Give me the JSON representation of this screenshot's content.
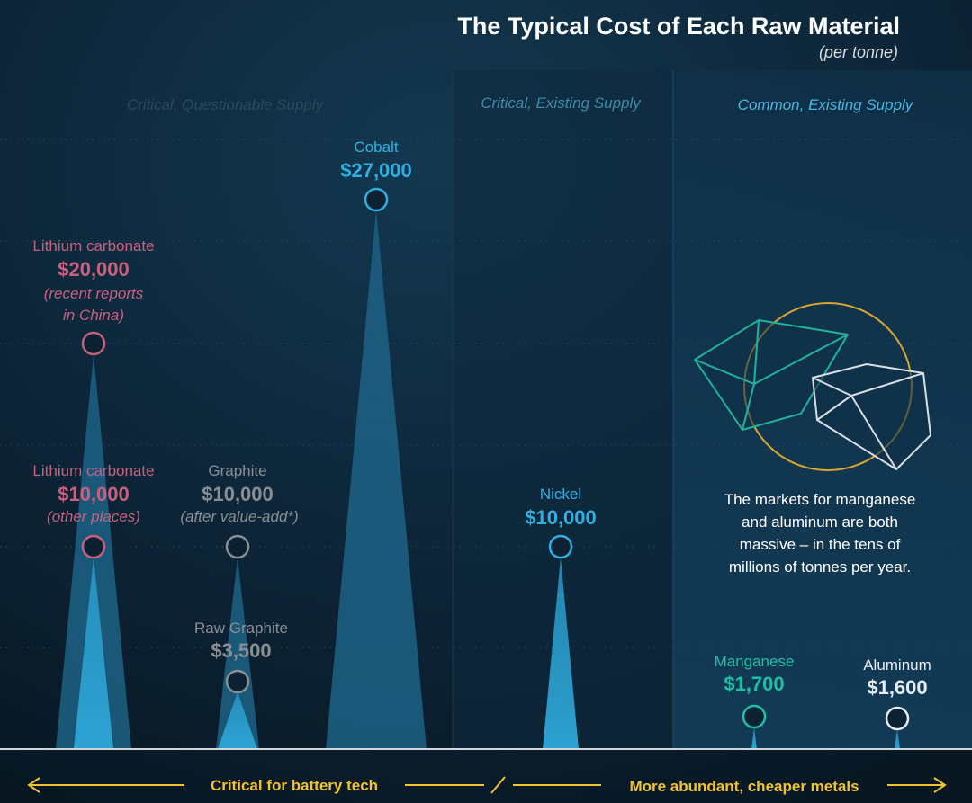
{
  "chart_data": {
    "type": "scatter",
    "title": "The Typical Cost of Each Raw Material",
    "subtitle": "(per tonne)",
    "sections": [
      {
        "label": "Critical, Questionable Supply",
        "color": "#2a4a5e"
      },
      {
        "label": "Critical, Existing Supply",
        "color": "#3f8aa6"
      },
      {
        "label": "Common, Existing Supply",
        "color": "#48b7e0"
      }
    ],
    "points": [
      {
        "name": "Lithium carbonate",
        "value_label": "$20,000",
        "note": [
          "(recent reports",
          "in China)"
        ],
        "value": 20000,
        "color": "#c9607e"
      },
      {
        "name": "Lithium carbonate",
        "value_label": "$10,000",
        "note": [
          "(other places)"
        ],
        "value": 10000,
        "color": "#c9607e"
      },
      {
        "name": "Graphite",
        "value_label": "$10,000",
        "note": [
          "(after value-add*)"
        ],
        "value": 10000,
        "color": "#8a8f95"
      },
      {
        "name": "Raw Graphite",
        "value_label": "$3,500",
        "note": [],
        "value": 3500,
        "color": "#8a8f95"
      },
      {
        "name": "Cobalt",
        "value_label": "$27,000",
        "note": [],
        "value": 27000,
        "color": "#2fb0e4"
      },
      {
        "name": "Nickel",
        "value_label": "$10,000",
        "note": [],
        "value": 10000,
        "color": "#2fb0e4"
      },
      {
        "name": "Manganese",
        "value_label": "$1,700",
        "note": [],
        "value": 1700,
        "color": "#1fbfa6"
      },
      {
        "name": "Aluminum",
        "value_label": "$1,600",
        "note": [],
        "value": 1600,
        "color": "#e6edf2"
      }
    ],
    "y_scale": "linear",
    "ylim": [
      0,
      27000
    ],
    "grid": true
  },
  "annotation": [
    "The markets for manganese",
    "and aluminum are both",
    "massive – in the tens of",
    "millions of tonnes per year."
  ],
  "bottom_axis": {
    "left_label": "Critical for battery tech",
    "right_label": "More abundant, cheaper metals",
    "color": "#f2c230"
  },
  "colors": {
    "background": "#0b1b29",
    "panel": "#0f2d42",
    "gold_circle": "#d8a531",
    "teal_crystal": "#21b39a",
    "white_crystal": "#d9dee2"
  }
}
